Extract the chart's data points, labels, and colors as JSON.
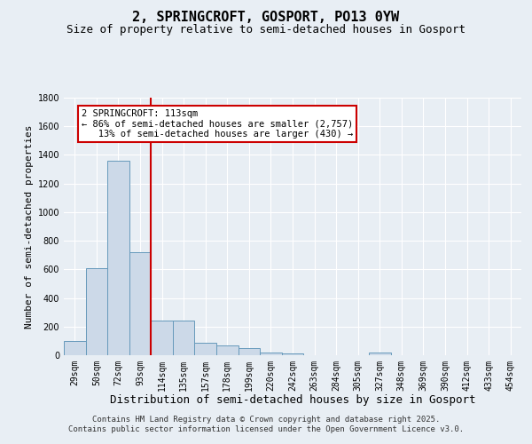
{
  "title": "2, SPRINGCROFT, GOSPORT, PO13 0YW",
  "subtitle": "Size of property relative to semi-detached houses in Gosport",
  "xlabel": "Distribution of semi-detached houses by size in Gosport",
  "ylabel": "Number of semi-detached properties",
  "categories": [
    "29sqm",
    "50sqm",
    "72sqm",
    "93sqm",
    "114sqm",
    "135sqm",
    "157sqm",
    "178sqm",
    "199sqm",
    "220sqm",
    "242sqm",
    "263sqm",
    "284sqm",
    "305sqm",
    "327sqm",
    "348sqm",
    "369sqm",
    "390sqm",
    "412sqm",
    "433sqm",
    "454sqm"
  ],
  "values": [
    100,
    610,
    1360,
    720,
    240,
    240,
    90,
    70,
    50,
    20,
    15,
    0,
    0,
    0,
    20,
    0,
    0,
    0,
    0,
    0,
    0
  ],
  "bar_color": "#ccd9e8",
  "bar_edge_color": "#6699bb",
  "background_color": "#e8eef4",
  "grid_color": "#ffffff",
  "vline_color": "#cc0000",
  "annotation_text": "2 SPRINGCROFT: 113sqm\n← 86% of semi-detached houses are smaller (2,757)\n   13% of semi-detached houses are larger (430) →",
  "annotation_box_color": "#ffffff",
  "annotation_box_edgecolor": "#cc0000",
  "ylim": [
    0,
    1800
  ],
  "yticks": [
    0,
    200,
    400,
    600,
    800,
    1000,
    1200,
    1400,
    1600,
    1800
  ],
  "footer_text": "Contains HM Land Registry data © Crown copyright and database right 2025.\nContains public sector information licensed under the Open Government Licence v3.0.",
  "title_fontsize": 11,
  "subtitle_fontsize": 9,
  "xlabel_fontsize": 9,
  "ylabel_fontsize": 8,
  "tick_fontsize": 7,
  "annotation_fontsize": 7.5,
  "footer_fontsize": 6.5
}
